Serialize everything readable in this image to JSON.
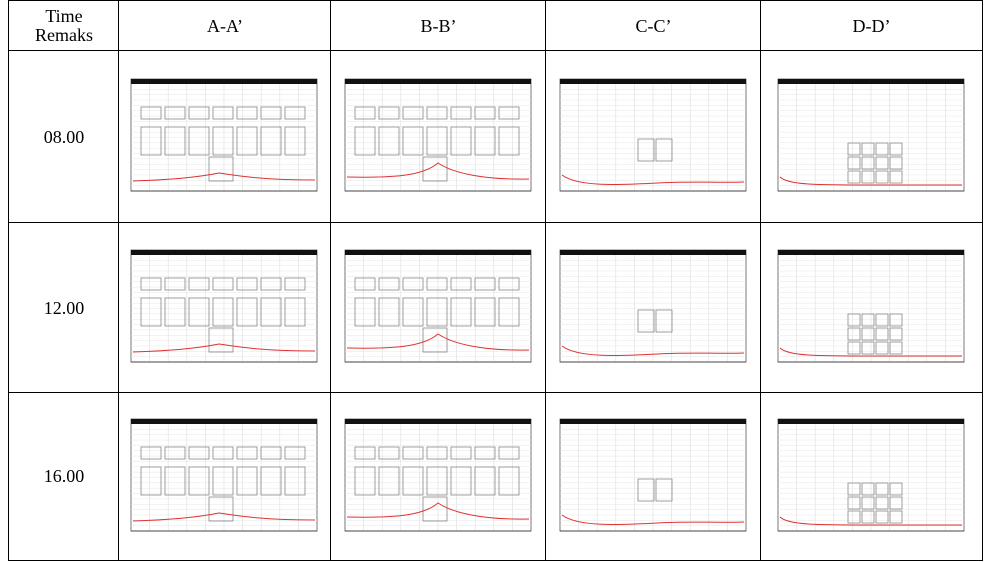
{
  "table": {
    "corner": [
      "Time",
      "Remaks"
    ],
    "columns": [
      "A-A’",
      "B-B’",
      "C-C’",
      "D-D’"
    ],
    "rows": [
      "08.00",
      "12.00",
      "16.00"
    ]
  }
}
